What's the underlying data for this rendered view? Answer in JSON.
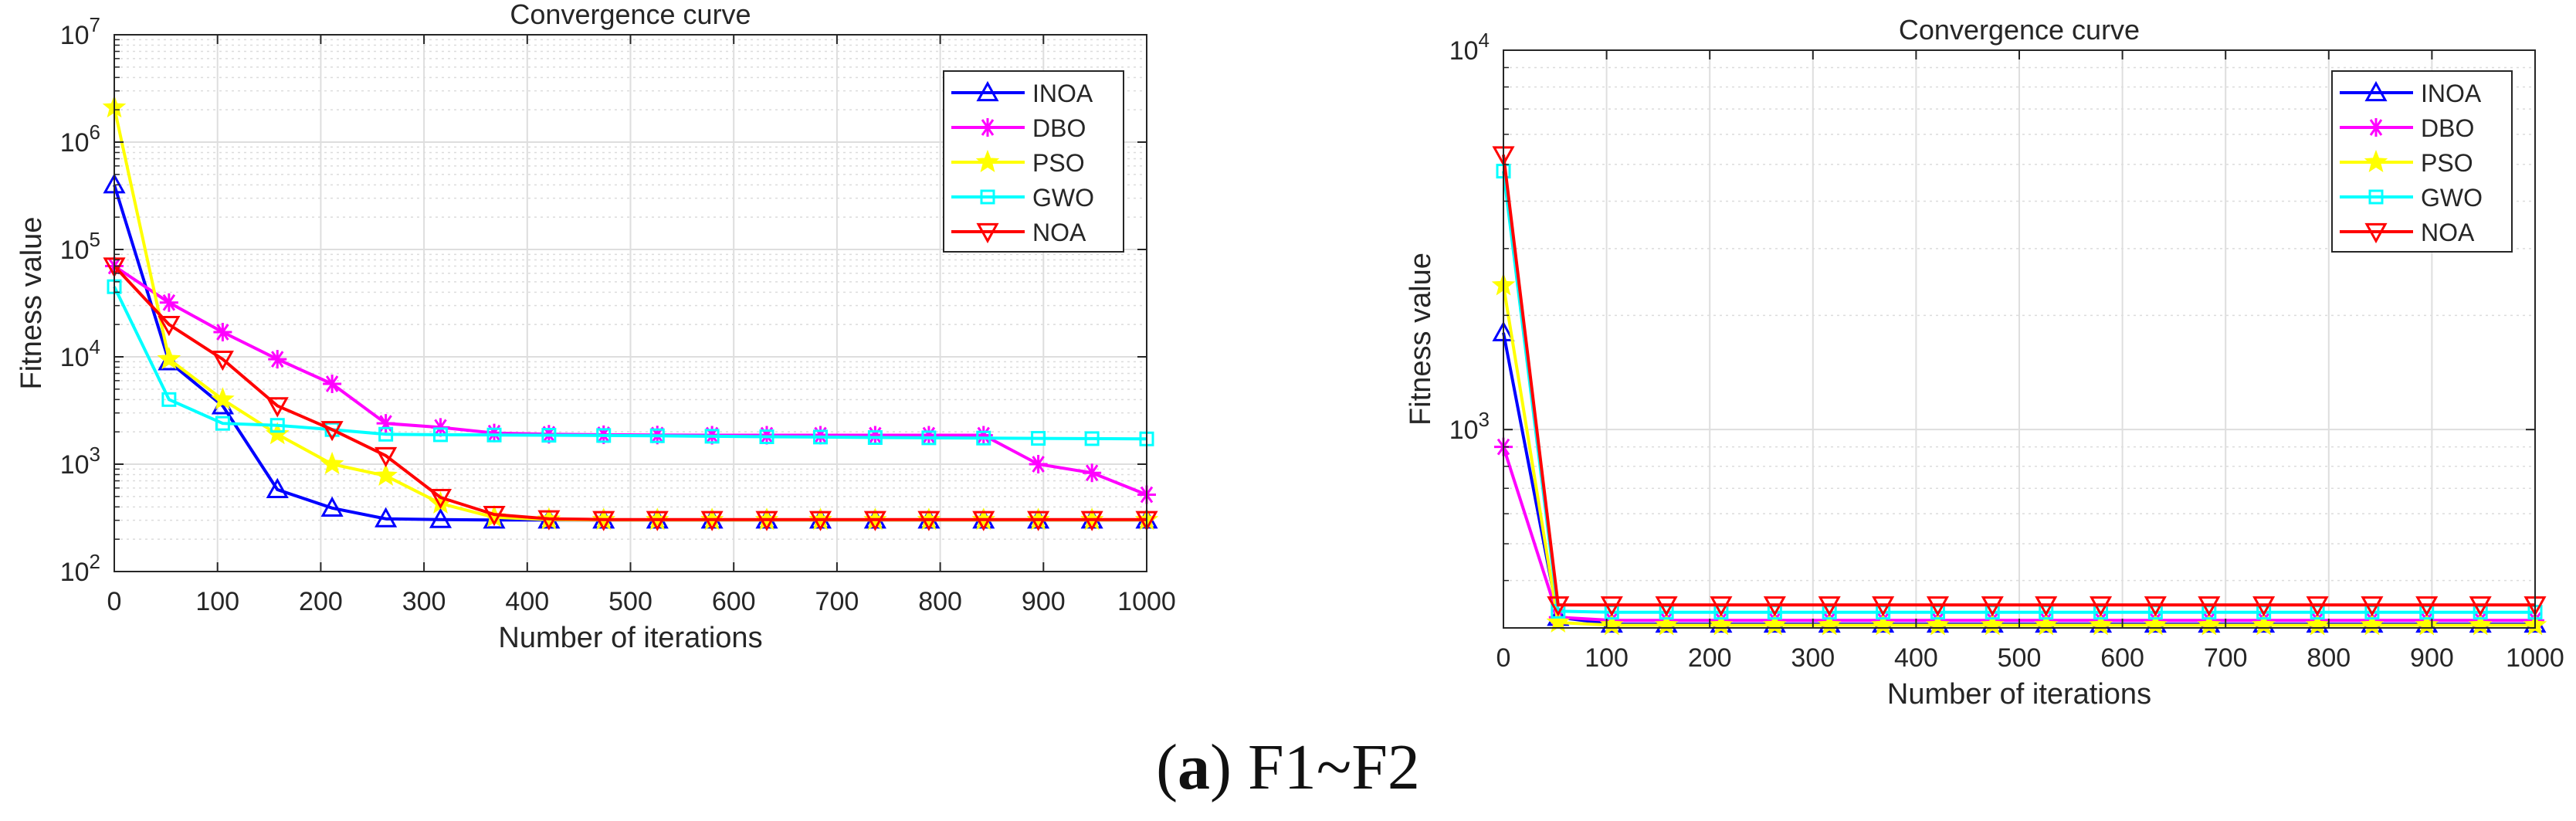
{
  "caption": {
    "label": "a",
    "paren_open": "(",
    "paren_close": ")",
    "text": "F1~F2"
  },
  "colors": {
    "INOA": "#0000ff",
    "DBO": "#ff00ff",
    "PSO": "#ffff00",
    "GWO": "#00ffff",
    "NOA": "#ff0000"
  },
  "chart_data": [
    {
      "type": "line",
      "title": "Convergence curve",
      "xlabel": "Number of iterations",
      "ylabel": "Fitness value",
      "yscale": "log",
      "xlim": [
        0,
        1000
      ],
      "ylim": [
        100,
        10000000
      ],
      "grid": true,
      "legend_position": "top-right",
      "x_ticks": [
        0,
        100,
        200,
        300,
        400,
        500,
        600,
        700,
        800,
        900,
        1000
      ],
      "y_ticks": [
        {
          "base": "10",
          "exp": "2"
        },
        {
          "base": "10",
          "exp": "3"
        },
        {
          "base": "10",
          "exp": "4"
        },
        {
          "base": "10",
          "exp": "5"
        },
        {
          "base": "10",
          "exp": "6"
        },
        {
          "base": "10",
          "exp": "7"
        }
      ],
      "x": [
        0,
        53,
        105,
        158,
        211,
        263,
        316,
        368,
        421,
        474,
        526,
        579,
        632,
        684,
        737,
        789,
        842,
        895,
        947,
        1000
      ],
      "series": [
        {
          "name": "INOA",
          "marker": "triangle-up",
          "values": [
            400000,
            9000,
            3500,
            580,
            390,
            310,
            305,
            302,
            302,
            302,
            302,
            302,
            302,
            302,
            302,
            302,
            302,
            302,
            302,
            302
          ]
        },
        {
          "name": "DBO",
          "marker": "asterisk",
          "values": [
            70000,
            32000,
            17000,
            9500,
            5600,
            2400,
            2200,
            1950,
            1900,
            1880,
            1870,
            1860,
            1860,
            1860,
            1860,
            1860,
            1860,
            1000,
            830,
            520
          ]
        },
        {
          "name": "PSO",
          "marker": "star",
          "values": [
            2100000,
            9500,
            4000,
            1900,
            1000,
            780,
            430,
            320,
            305,
            302,
            302,
            302,
            302,
            302,
            302,
            302,
            302,
            302,
            302,
            302
          ]
        },
        {
          "name": "GWO",
          "marker": "square",
          "values": [
            45000,
            4000,
            2400,
            2300,
            2100,
            1900,
            1880,
            1870,
            1860,
            1850,
            1840,
            1820,
            1800,
            1790,
            1770,
            1760,
            1750,
            1740,
            1730,
            1720
          ]
        },
        {
          "name": "NOA",
          "marker": "triangle-down",
          "values": [
            70000,
            20000,
            9500,
            3500,
            2100,
            1200,
            490,
            340,
            310,
            305,
            305,
            305,
            305,
            305,
            305,
            305,
            305,
            305,
            305,
            305
          ]
        }
      ]
    },
    {
      "type": "line",
      "title": "Convergence curve",
      "xlabel": "Number of iterations",
      "ylabel": "Fitness value",
      "yscale": "log",
      "xlim": [
        0,
        1000
      ],
      "ylim": [
        300,
        10000
      ],
      "grid": true,
      "legend_position": "top-right",
      "x_ticks": [
        0,
        100,
        200,
        300,
        400,
        500,
        600,
        700,
        800,
        900,
        1000
      ],
      "y_ticks": [
        {
          "base": "10",
          "exp": "3"
        },
        {
          "base": "10",
          "exp": "4"
        }
      ],
      "x": [
        0,
        53,
        105,
        158,
        211,
        263,
        316,
        368,
        421,
        474,
        526,
        579,
        632,
        684,
        737,
        789,
        842,
        895,
        947,
        1000
      ],
      "series": [
        {
          "name": "INOA",
          "marker": "triangle-up",
          "values": [
            1800,
            320,
            307,
            307,
            307,
            307,
            307,
            307,
            307,
            307,
            307,
            307,
            307,
            307,
            307,
            307,
            307,
            307,
            307,
            307
          ]
        },
        {
          "name": "DBO",
          "marker": "asterisk",
          "values": [
            900,
            320,
            314,
            314,
            314,
            314,
            314,
            314,
            314,
            314,
            314,
            314,
            314,
            314,
            314,
            314,
            314,
            314,
            314,
            314
          ]
        },
        {
          "name": "PSO",
          "marker": "star",
          "values": [
            2400,
            310,
            305,
            305,
            305,
            305,
            305,
            305,
            305,
            305,
            305,
            305,
            305,
            305,
            305,
            305,
            305,
            305,
            305,
            305
          ]
        },
        {
          "name": "GWO",
          "marker": "square",
          "values": [
            4800,
            332,
            330,
            330,
            330,
            330,
            330,
            330,
            330,
            330,
            330,
            330,
            330,
            330,
            330,
            330,
            330,
            330,
            330,
            330
          ]
        },
        {
          "name": "NOA",
          "marker": "triangle-down",
          "values": [
            5300,
            345,
            345,
            345,
            345,
            345,
            345,
            345,
            345,
            345,
            345,
            345,
            345,
            345,
            345,
            345,
            345,
            345,
            345,
            345
          ]
        }
      ]
    }
  ]
}
